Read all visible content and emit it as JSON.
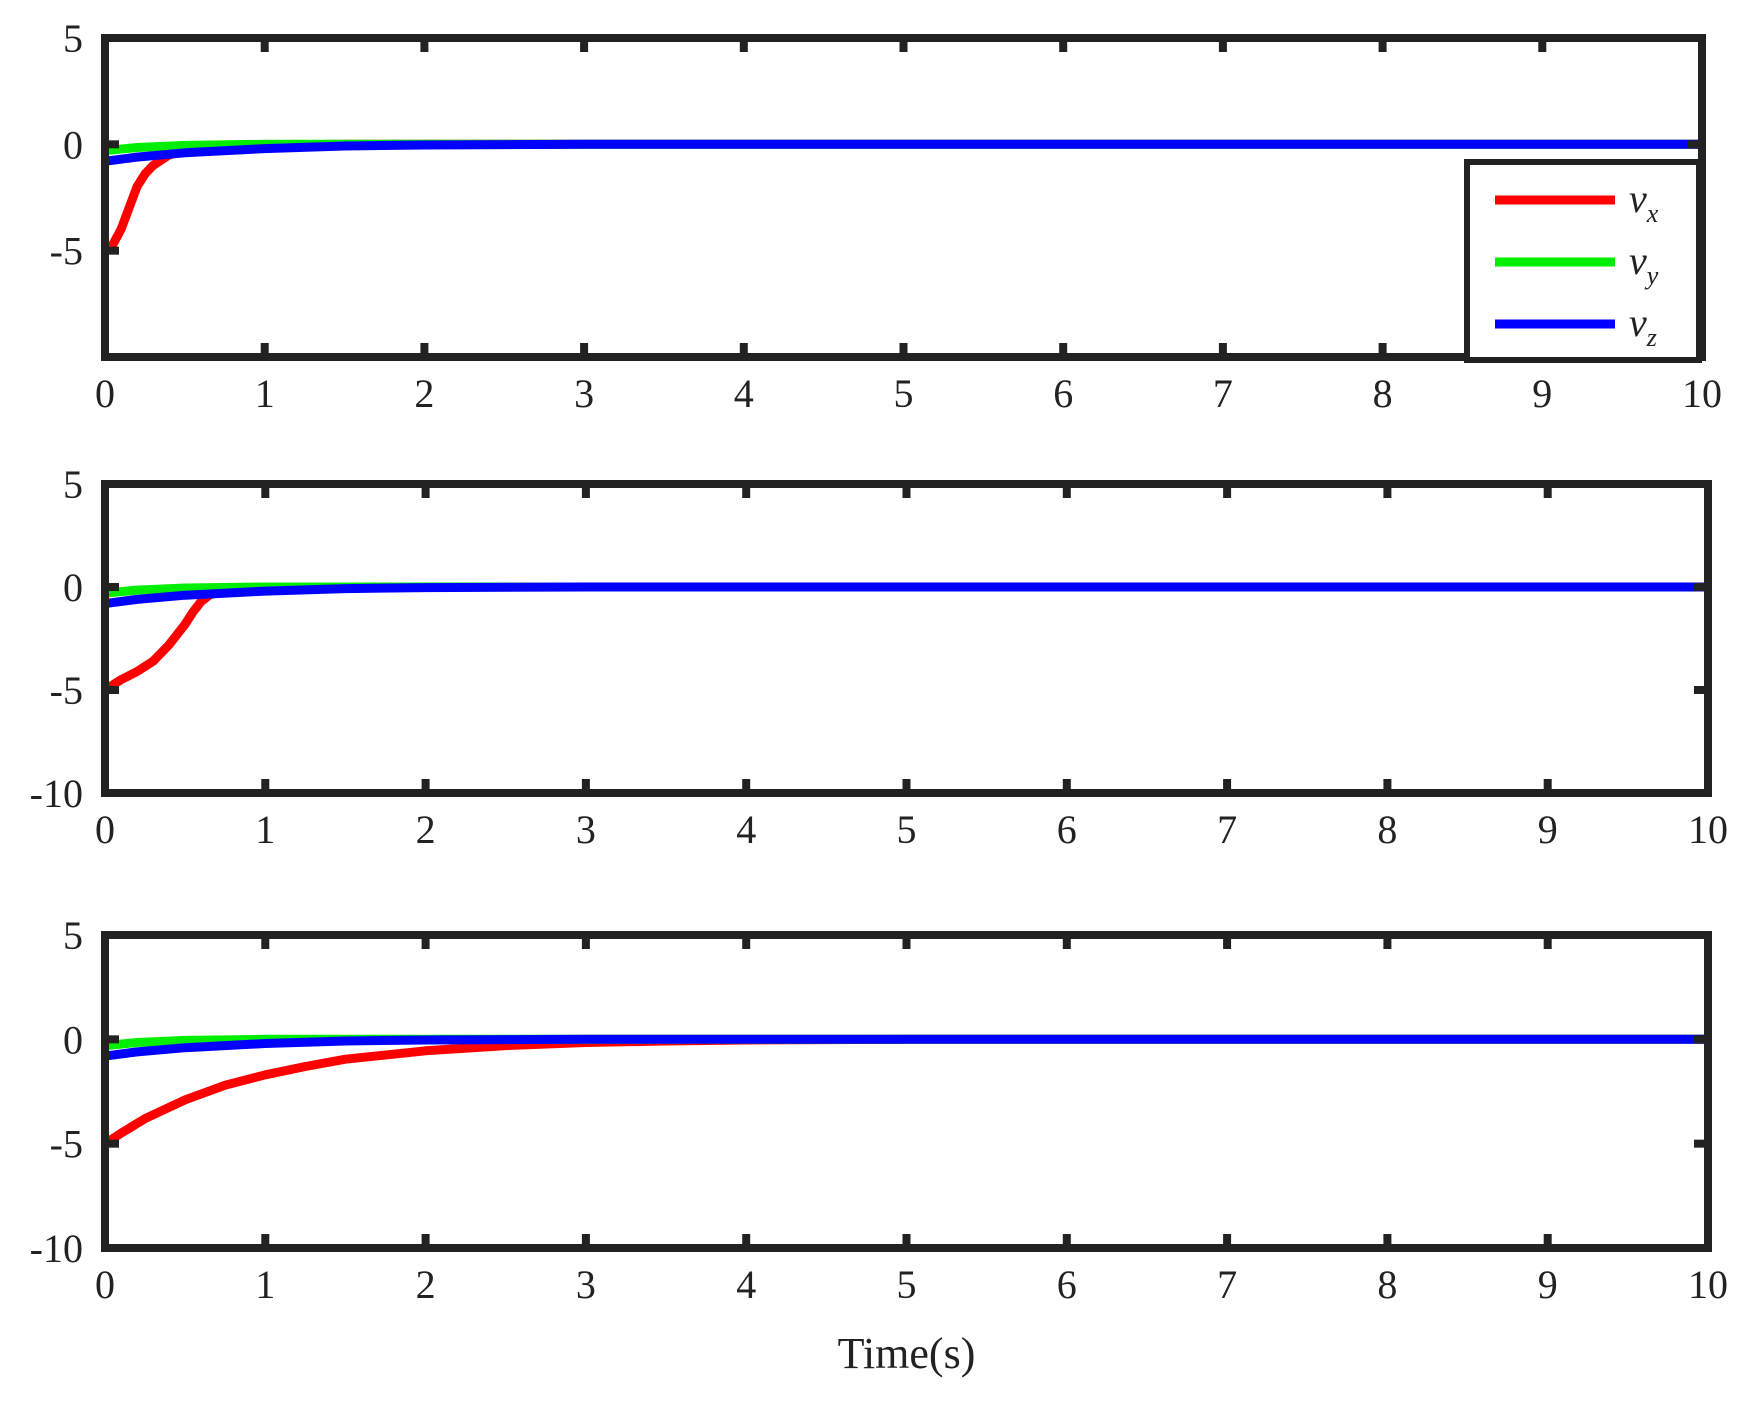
{
  "colors": {
    "vx": "#ff0000",
    "vy": "#00ee00",
    "vz": "#0000ff",
    "axes": "#222222"
  },
  "chart_data": [
    {
      "type": "line",
      "xlabel": "",
      "xlim": [
        0,
        10
      ],
      "ylim": [
        -10,
        5
      ],
      "x_ticks": [
        "0",
        "1",
        "2",
        "3",
        "4",
        "5",
        "6",
        "7",
        "8",
        "9",
        "10"
      ],
      "y_ticks": [
        "5",
        "0",
        "-5"
      ],
      "legend": {
        "placement": "right",
        "entries": [
          {
            "base": "v",
            "sub": "x"
          },
          {
            "base": "v",
            "sub": "y"
          },
          {
            "base": "v",
            "sub": "z"
          }
        ]
      },
      "series": [
        {
          "key": "vx",
          "x": [
            0,
            0.05,
            0.1,
            0.15,
            0.2,
            0.25,
            0.3,
            0.4,
            0.5,
            0.7,
            1,
            1.5,
            2,
            3,
            5,
            10
          ],
          "y": [
            -5,
            -4.7,
            -4,
            -3,
            -2,
            -1.4,
            -1,
            -0.5,
            -0.3,
            -0.1,
            -0.03,
            0,
            0,
            0,
            0,
            0
          ]
        },
        {
          "key": "vy",
          "x": [
            0,
            0.2,
            0.5,
            1,
            1.5,
            2,
            10
          ],
          "y": [
            -0.3,
            -0.15,
            -0.05,
            0,
            0,
            0,
            0
          ]
        },
        {
          "key": "vz",
          "x": [
            0,
            0.2,
            0.5,
            1,
            1.5,
            2,
            3,
            10
          ],
          "y": [
            -0.8,
            -0.6,
            -0.4,
            -0.2,
            -0.08,
            -0.03,
            0,
            0
          ]
        }
      ]
    },
    {
      "type": "line",
      "xlabel": "",
      "xlim": [
        0,
        10
      ],
      "ylim": [
        -10,
        5
      ],
      "x_ticks": [
        "0",
        "1",
        "2",
        "3",
        "4",
        "5",
        "6",
        "7",
        "8",
        "9",
        "10"
      ],
      "y_ticks": [
        "5",
        "0",
        "-5",
        "-10"
      ],
      "series": [
        {
          "key": "vx",
          "x": [
            0,
            0.1,
            0.2,
            0.3,
            0.4,
            0.5,
            0.55,
            0.6,
            0.65,
            0.7,
            0.8,
            1,
            1.5,
            2,
            10
          ],
          "y": [
            -5,
            -4.5,
            -4.1,
            -3.6,
            -2.8,
            -1.8,
            -1.2,
            -0.7,
            -0.4,
            -0.25,
            -0.1,
            -0.03,
            0,
            0,
            0
          ]
        },
        {
          "key": "vy",
          "x": [
            0,
            0.2,
            0.5,
            1,
            1.5,
            2,
            10
          ],
          "y": [
            -0.3,
            -0.15,
            -0.05,
            0,
            0,
            0,
            0
          ]
        },
        {
          "key": "vz",
          "x": [
            0,
            0.2,
            0.5,
            1,
            1.5,
            2,
            3,
            10
          ],
          "y": [
            -0.8,
            -0.6,
            -0.4,
            -0.2,
            -0.08,
            -0.03,
            0,
            0
          ]
        }
      ]
    },
    {
      "type": "line",
      "xlabel": "Time(s)",
      "xlim": [
        0,
        10
      ],
      "ylim": [
        -10,
        5
      ],
      "x_ticks": [
        "0",
        "1",
        "2",
        "3",
        "4",
        "5",
        "6",
        "7",
        "8",
        "9",
        "10"
      ],
      "y_ticks": [
        "5",
        "0",
        "-5",
        "-10"
      ],
      "series": [
        {
          "key": "vx",
          "x": [
            0,
            0.1,
            0.25,
            0.5,
            0.75,
            1,
            1.25,
            1.5,
            2,
            2.5,
            3,
            3.5,
            4,
            5,
            10
          ],
          "y": [
            -5,
            -4.5,
            -3.8,
            -2.9,
            -2.2,
            -1.7,
            -1.3,
            -0.95,
            -0.55,
            -0.3,
            -0.15,
            -0.08,
            -0.03,
            0,
            0
          ]
        },
        {
          "key": "vy",
          "x": [
            0,
            0.2,
            0.5,
            1,
            1.5,
            2,
            10
          ],
          "y": [
            -0.3,
            -0.15,
            -0.05,
            0,
            0,
            0,
            0
          ]
        },
        {
          "key": "vz",
          "x": [
            0,
            0.2,
            0.5,
            1,
            1.5,
            2,
            3,
            10
          ],
          "y": [
            -0.8,
            -0.6,
            -0.4,
            -0.2,
            -0.08,
            -0.03,
            0,
            0
          ]
        }
      ]
    }
  ]
}
